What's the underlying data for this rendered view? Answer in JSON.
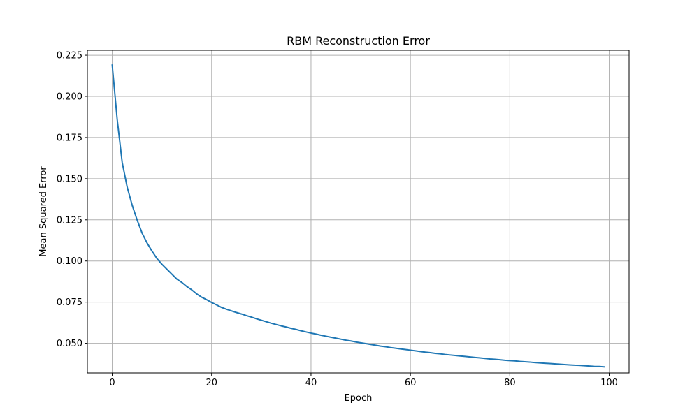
{
  "chart_data": {
    "type": "line",
    "title": "RBM Reconstruction Error",
    "xlabel": "Epoch",
    "ylabel": "Mean Squared Error",
    "xlim": [
      -5,
      104
    ],
    "ylim": [
      0.032,
      0.228
    ],
    "xticks": [
      0,
      20,
      40,
      60,
      80,
      100
    ],
    "xtick_labels": [
      "0",
      "20",
      "40",
      "60",
      "80",
      "100"
    ],
    "yticks": [
      0.05,
      0.075,
      0.1,
      0.125,
      0.15,
      0.175,
      0.2,
      0.225
    ],
    "ytick_labels": [
      "0.050",
      "0.075",
      "0.100",
      "0.125",
      "0.150",
      "0.175",
      "0.200",
      "0.225"
    ],
    "grid": true,
    "series": [
      {
        "color": "#1f77b4",
        "x": [
          0,
          1,
          2,
          3,
          4,
          5,
          6,
          7,
          8,
          9,
          10,
          11,
          12,
          13,
          14,
          15,
          16,
          17,
          18,
          19,
          20,
          21,
          22,
          23,
          24,
          25,
          26,
          27,
          28,
          29,
          30,
          31,
          32,
          33,
          34,
          35,
          36,
          37,
          38,
          39,
          40,
          41,
          42,
          43,
          44,
          45,
          46,
          47,
          48,
          49,
          50,
          51,
          52,
          53,
          54,
          55,
          56,
          57,
          58,
          59,
          60,
          61,
          62,
          63,
          64,
          65,
          66,
          67,
          68,
          69,
          70,
          71,
          72,
          73,
          74,
          75,
          76,
          77,
          78,
          79,
          80,
          81,
          82,
          83,
          84,
          85,
          86,
          87,
          88,
          89,
          90,
          91,
          92,
          93,
          94,
          95,
          96,
          97,
          98,
          99
        ],
        "values": [
          0.219,
          0.186,
          0.16,
          0.145,
          0.134,
          0.125,
          0.117,
          0.111,
          0.106,
          0.1015,
          0.098,
          0.095,
          0.092,
          0.089,
          0.087,
          0.0845,
          0.0825,
          0.08,
          0.078,
          0.0765,
          0.0748,
          0.0733,
          0.0718,
          0.0707,
          0.0697,
          0.0687,
          0.0678,
          0.0668,
          0.0659,
          0.0649,
          0.064,
          0.0631,
          0.0622,
          0.0614,
          0.0606,
          0.0599,
          0.0591,
          0.0584,
          0.0576,
          0.0569,
          0.0562,
          0.0556,
          0.0549,
          0.0543,
          0.0537,
          0.0531,
          0.0525,
          0.0519,
          0.0514,
          0.0508,
          0.0503,
          0.0498,
          0.0493,
          0.0488,
          0.0483,
          0.0479,
          0.0474,
          0.047,
          0.0466,
          0.0462,
          0.0458,
          0.0454,
          0.045,
          0.0446,
          0.0443,
          0.0439,
          0.0436,
          0.0432,
          0.0429,
          0.0426,
          0.0423,
          0.042,
          0.0417,
          0.0414,
          0.0411,
          0.0408,
          0.0405,
          0.0403,
          0.04,
          0.0397,
          0.0395,
          0.0393,
          0.039,
          0.0388,
          0.0386,
          0.0383,
          0.0381,
          0.0379,
          0.0377,
          0.0375,
          0.0373,
          0.0371,
          0.0369,
          0.0367,
          0.0366,
          0.0364,
          0.0362,
          0.036,
          0.0359,
          0.0357
        ]
      }
    ]
  }
}
